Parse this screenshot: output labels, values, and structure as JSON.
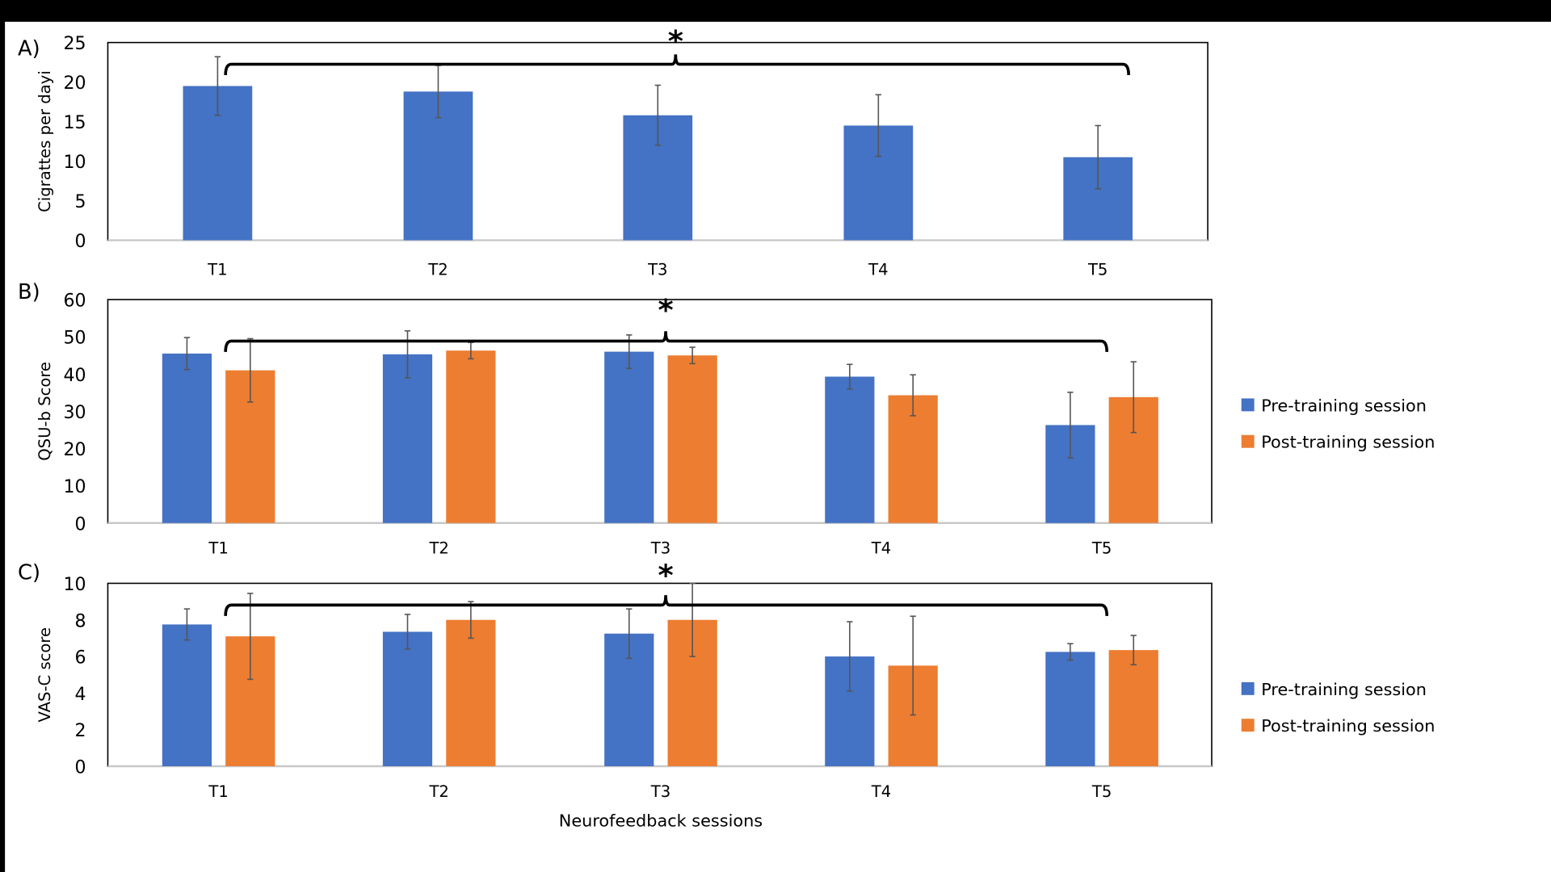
{
  "chart_data": [
    {
      "type": "bar",
      "panel_label": "A)",
      "ylabel": "Cigrattes per dayi",
      "ylim": [
        0,
        25
      ],
      "yticks": [
        0,
        5,
        10,
        15,
        20,
        25
      ],
      "categories": [
        "T1",
        "T2",
        "T3",
        "T4",
        "T5"
      ],
      "series": [
        {
          "values": [
            19.5,
            18.8,
            15.8,
            14.5,
            10.5
          ],
          "errors": [
            3.7,
            3.3,
            3.8,
            3.9,
            4.0
          ],
          "color": "#4472C4"
        }
      ],
      "annotation": "*",
      "grid": false
    },
    {
      "type": "bar",
      "panel_label": "B)",
      "ylabel": "QSU-b Score",
      "ylim": [
        0,
        60
      ],
      "yticks": [
        0,
        10,
        20,
        30,
        40,
        50,
        60
      ],
      "categories": [
        "T1",
        "T2",
        "T3",
        "T4",
        "T5"
      ],
      "series": [
        {
          "name": "Pre-training session",
          "values": [
            45.5,
            45.3,
            46.0,
            39.3,
            26.3
          ],
          "errors": [
            4.3,
            6.3,
            4.5,
            3.3,
            8.8
          ],
          "color": "#4472C4"
        },
        {
          "name": "Post-training session",
          "values": [
            41.0,
            46.3,
            45.0,
            34.3,
            33.8
          ],
          "errors": [
            8.5,
            2.2,
            2.2,
            5.5,
            9.5
          ],
          "color": "#ED7D31"
        }
      ],
      "annotation": "*",
      "legend": "right",
      "grid": false
    },
    {
      "type": "bar",
      "panel_label": "C)",
      "ylabel": "VAS-C score",
      "xlabel": "Neurofeedback sessions",
      "ylim": [
        0,
        10
      ],
      "yticks": [
        0,
        2,
        4,
        6,
        8,
        10
      ],
      "categories": [
        "T1",
        "T2",
        "T3",
        "T4",
        "T5"
      ],
      "series": [
        {
          "name": "Pre-training session",
          "values": [
            7.75,
            7.35,
            7.25,
            6.0,
            6.25
          ],
          "errors": [
            0.85,
            0.95,
            1.35,
            1.9,
            0.45
          ],
          "color": "#4472C4"
        },
        {
          "name": "Post-training session",
          "values": [
            7.1,
            8.0,
            8.0,
            5.5,
            6.35
          ],
          "errors": [
            2.35,
            1.0,
            2.0,
            2.7,
            0.8
          ],
          "color": "#ED7D31"
        }
      ],
      "annotation": "*",
      "legend": "right",
      "grid": false
    }
  ]
}
